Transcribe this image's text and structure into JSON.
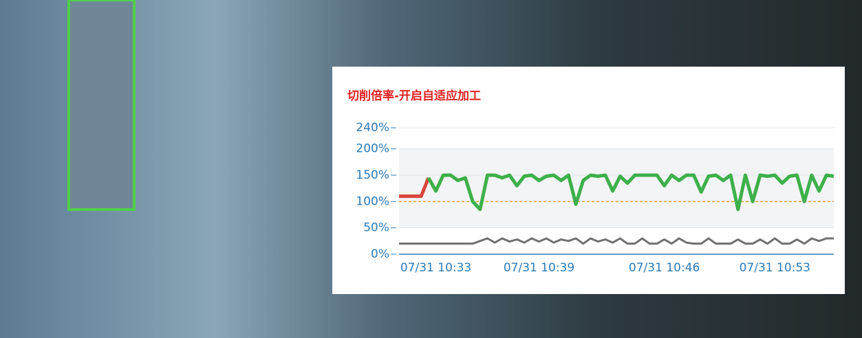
{
  "chart_data": {
    "type": "line",
    "title": "切削倍率-开启自适应加工",
    "xlim": [
      0,
      59
    ],
    "xticks": [
      {
        "value": 5,
        "label": "07/31 10:33"
      },
      {
        "value": 19,
        "label": "07/31 10:39"
      },
      {
        "value": 36,
        "label": "07/31 10:46"
      },
      {
        "value": 51,
        "label": "07/31 10:53"
      }
    ],
    "ylim": [
      0,
      240
    ],
    "yticks": [
      {
        "value": 0,
        "label": "0%"
      },
      {
        "value": 50,
        "label": "50%"
      },
      {
        "value": 100,
        "label": "100%"
      },
      {
        "value": 150,
        "label": "150%"
      },
      {
        "value": 200,
        "label": "200%"
      },
      {
        "value": 240,
        "label": "240%"
      }
    ],
    "grid": true,
    "band": [
      50,
      200
    ],
    "reference_line": {
      "value": 100,
      "color": "#e0a030"
    },
    "series": [
      {
        "color": "#d9443a",
        "values": [
          110,
          110,
          110,
          110,
          145,
          null,
          null,
          null,
          null,
          null,
          null,
          null,
          null,
          null,
          null,
          null,
          null,
          null,
          null,
          null,
          null,
          null,
          null,
          null,
          null,
          null,
          null,
          null,
          null,
          null,
          null,
          null,
          null,
          null,
          null,
          null,
          null,
          null,
          null,
          null,
          null,
          null,
          null,
          null,
          null,
          null,
          null,
          null,
          null,
          null,
          null,
          null,
          null,
          null,
          null,
          null,
          null,
          null,
          null,
          null
        ]
      },
      {
        "color": "#3db04a",
        "values": [
          null,
          null,
          null,
          null,
          145,
          120,
          150,
          150,
          140,
          145,
          100,
          85,
          150,
          150,
          145,
          150,
          130,
          148,
          150,
          140,
          148,
          150,
          140,
          150,
          95,
          140,
          150,
          148,
          150,
          120,
          148,
          135,
          150,
          150,
          150,
          150,
          130,
          150,
          140,
          150,
          150,
          118,
          148,
          150,
          140,
          150,
          85,
          150,
          100,
          150,
          148,
          150,
          135,
          148,
          150,
          100,
          150,
          120,
          150,
          148
        ]
      },
      {
        "color": "#707070",
        "values": [
          20,
          20,
          20,
          20,
          20,
          20,
          20,
          20,
          20,
          20,
          20,
          25,
          30,
          22,
          30,
          24,
          28,
          22,
          30,
          24,
          30,
          22,
          28,
          25,
          30,
          20,
          30,
          24,
          28,
          22,
          30,
          20,
          20,
          30,
          20,
          20,
          28,
          20,
          30,
          22,
          20,
          20,
          30,
          20,
          20,
          20,
          28,
          20,
          20,
          28,
          20,
          30,
          20,
          20,
          28,
          20,
          30,
          25,
          30,
          30
        ]
      }
    ]
  }
}
